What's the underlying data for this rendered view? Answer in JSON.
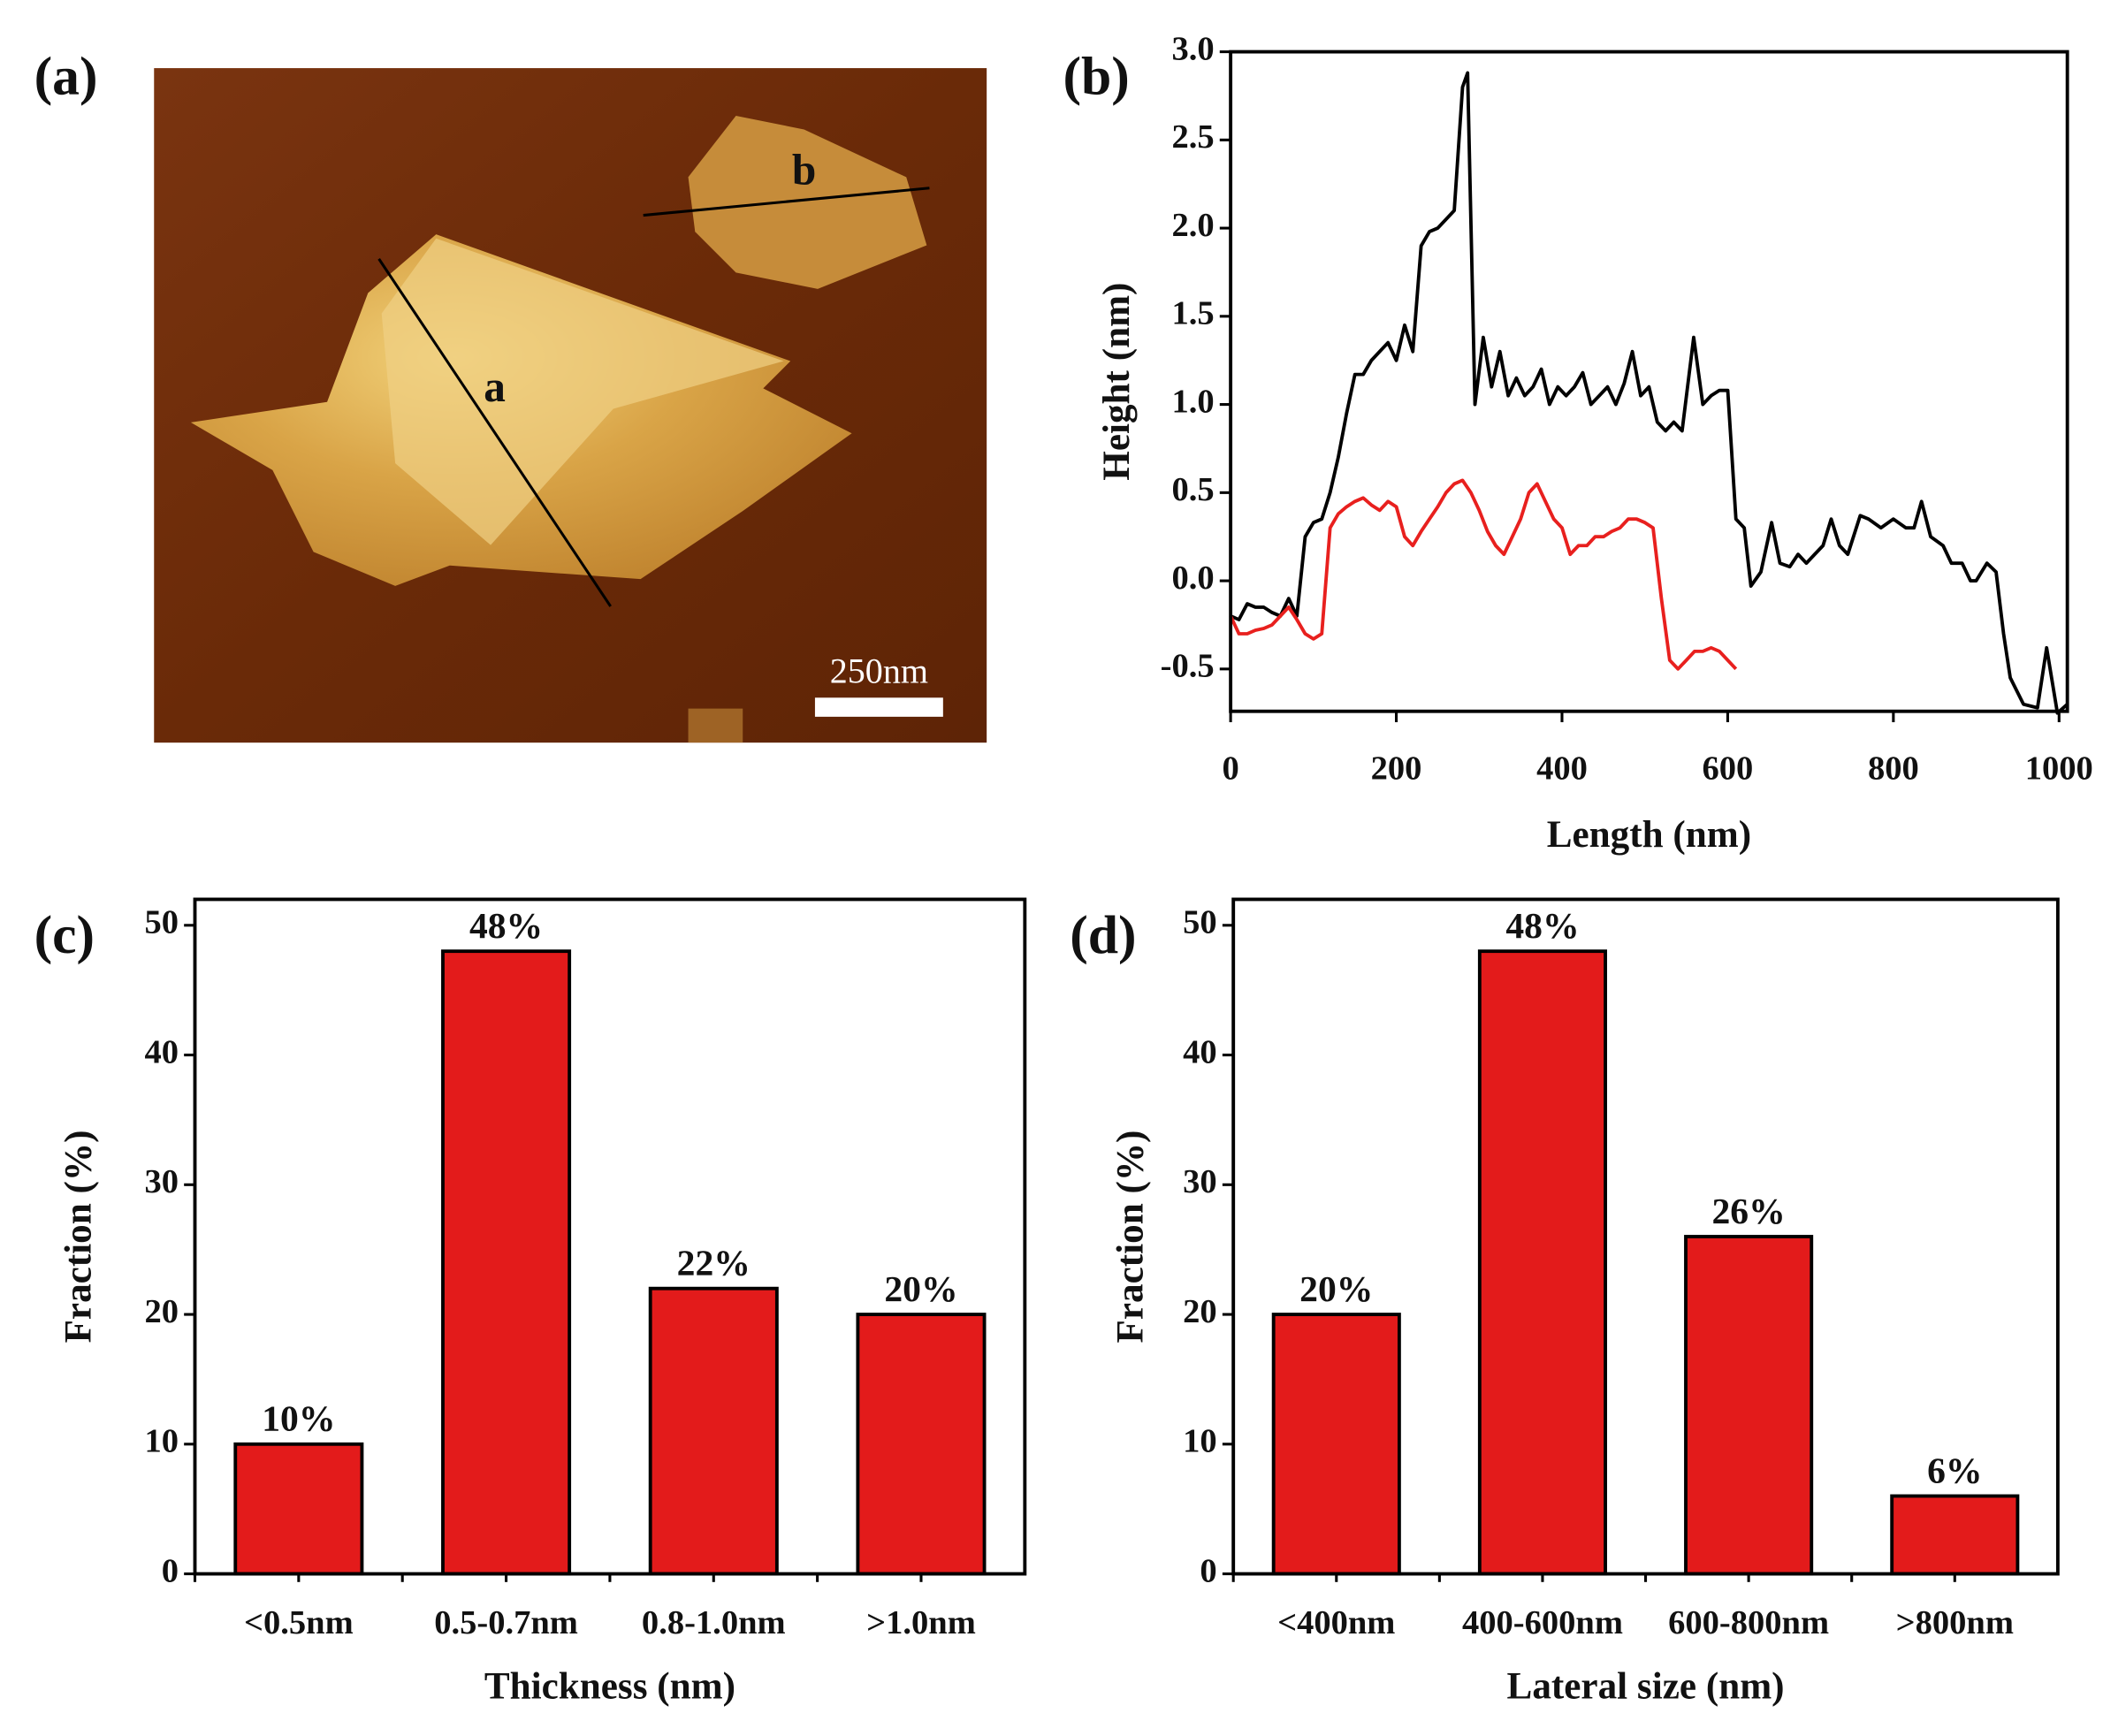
{
  "image": {
    "label": "(a)",
    "line_a": "a",
    "line_b": "b",
    "scale_bar": "250nm"
  },
  "chart_data": [
    {
      "type": "line",
      "label": "(b)",
      "xlabel": "Length (nm)",
      "ylabel": "Height (nm)",
      "xlim": [
        0,
        1010
      ],
      "ylim": [
        -0.74,
        3.0
      ],
      "xticks": [
        0,
        200,
        400,
        600,
        800,
        1000
      ],
      "yticks": [
        {
          "value": -0.5,
          "label": "-0.5"
        },
        {
          "value": 0,
          "label": "0.0"
        },
        0.5,
        {
          "value": 1,
          "label": "1.0"
        },
        1.5,
        {
          "value": 2,
          "label": "2.0"
        },
        2.5,
        {
          "value": 3,
          "label": "3.0"
        }
      ],
      "series": [
        {
          "color": "#000000",
          "x": [
            0,
            10,
            20,
            30,
            40,
            50,
            60,
            70,
            80,
            90,
            100,
            110,
            120,
            130,
            140,
            150,
            160,
            170,
            180,
            190,
            200,
            210,
            220,
            230,
            240,
            250,
            260,
            270,
            280,
            286,
            295,
            305,
            315,
            325,
            335,
            345,
            355,
            365,
            375,
            385,
            395,
            405,
            415,
            425,
            435,
            445,
            455,
            465,
            475,
            485,
            495,
            505,
            515,
            525,
            535,
            545,
            559,
            570,
            580,
            590,
            600,
            610,
            620,
            628,
            640,
            653,
            663,
            675,
            685,
            695,
            705,
            715,
            725,
            735,
            745,
            760,
            770,
            785,
            800,
            815,
            825,
            834,
            845,
            860,
            870,
            883,
            893,
            900,
            913,
            924,
            933,
            941,
            957,
            974,
            985,
            998,
            1010
          ],
          "values": [
            -0.2,
            -0.22,
            -0.13,
            -0.15,
            -0.15,
            -0.18,
            -0.2,
            -0.1,
            -0.2,
            0.25,
            0.33,
            0.35,
            0.5,
            0.7,
            0.95,
            1.17,
            1.17,
            1.25,
            1.3,
            1.35,
            1.25,
            1.45,
            1.3,
            1.9,
            1.98,
            2.0,
            2.05,
            2.1,
            2.8,
            2.88,
            1.0,
            1.38,
            1.1,
            1.3,
            1.05,
            1.15,
            1.05,
            1.1,
            1.2,
            1.0,
            1.1,
            1.05,
            1.1,
            1.18,
            1.0,
            1.05,
            1.1,
            1.0,
            1.12,
            1.3,
            1.05,
            1.1,
            0.9,
            0.85,
            0.9,
            0.85,
            1.38,
            1.0,
            1.05,
            1.08,
            1.08,
            0.35,
            0.3,
            -0.03,
            0.05,
            0.33,
            0.1,
            0.08,
            0.15,
            0.1,
            0.15,
            0.2,
            0.35,
            0.2,
            0.15,
            0.37,
            0.35,
            0.3,
            0.35,
            0.3,
            0.3,
            0.45,
            0.25,
            0.2,
            0.1,
            0.1,
            0.0,
            0.0,
            0.1,
            0.05,
            -0.3,
            -0.55,
            -0.7,
            -0.72,
            -0.38,
            -0.75,
            -0.7
          ]
        },
        {
          "color": "#e8201e",
          "x": [
            0,
            10,
            20,
            30,
            40,
            50,
            60,
            70,
            80,
            90,
            100,
            110,
            120,
            130,
            140,
            150,
            160,
            170,
            180,
            190,
            200,
            210,
            220,
            230,
            240,
            250,
            260,
            270,
            280,
            290,
            300,
            310,
            320,
            330,
            340,
            350,
            360,
            370,
            380,
            390,
            400,
            410,
            420,
            430,
            440,
            450,
            460,
            470,
            480,
            490,
            500,
            510,
            520,
            530,
            540,
            550,
            560,
            570,
            580,
            590,
            600,
            610
          ],
          "values": [
            -0.2,
            -0.3,
            -0.3,
            -0.28,
            -0.27,
            -0.25,
            -0.2,
            -0.15,
            -0.22,
            -0.3,
            -0.33,
            -0.3,
            0.3,
            0.38,
            0.42,
            0.45,
            0.47,
            0.43,
            0.4,
            0.45,
            0.42,
            0.25,
            0.2,
            0.28,
            0.35,
            0.42,
            0.5,
            0.55,
            0.57,
            0.5,
            0.4,
            0.28,
            0.2,
            0.15,
            0.25,
            0.35,
            0.5,
            0.55,
            0.45,
            0.35,
            0.3,
            0.15,
            0.2,
            0.2,
            0.25,
            0.25,
            0.28,
            0.3,
            0.35,
            0.35,
            0.33,
            0.3,
            -0.1,
            -0.45,
            -0.5,
            -0.45,
            -0.4,
            -0.4,
            -0.38,
            -0.4,
            -0.45,
            -0.5
          ]
        }
      ]
    },
    {
      "type": "bar",
      "label": "(c)",
      "xlabel": "Thickness (nm)",
      "ylabel": "Fraction (%)",
      "categories": [
        "<0.5nm",
        "0.5-0.7nm",
        "0.8-1.0nm",
        ">1.0nm"
      ],
      "values": [
        10,
        48,
        22,
        20
      ],
      "value_labels": [
        "10%",
        "48%",
        "22%",
        "20%"
      ],
      "color": "#e31b1b",
      "ylim": [
        0,
        52
      ],
      "yticks": [
        0,
        10,
        20,
        30,
        40,
        50
      ]
    },
    {
      "type": "bar",
      "label": "(d)",
      "xlabel": "Lateral size (nm)",
      "ylabel": "Fraction (%)",
      "categories": [
        "<400nm",
        "400-600nm",
        "600-800nm",
        ">800nm"
      ],
      "values": [
        20,
        48,
        26,
        6
      ],
      "value_labels": [
        "20%",
        "48%",
        "26%",
        "6%"
      ],
      "color": "#e31b1b",
      "ylim": [
        0,
        52
      ],
      "yticks": [
        0,
        10,
        20,
        30,
        40,
        50
      ]
    }
  ]
}
